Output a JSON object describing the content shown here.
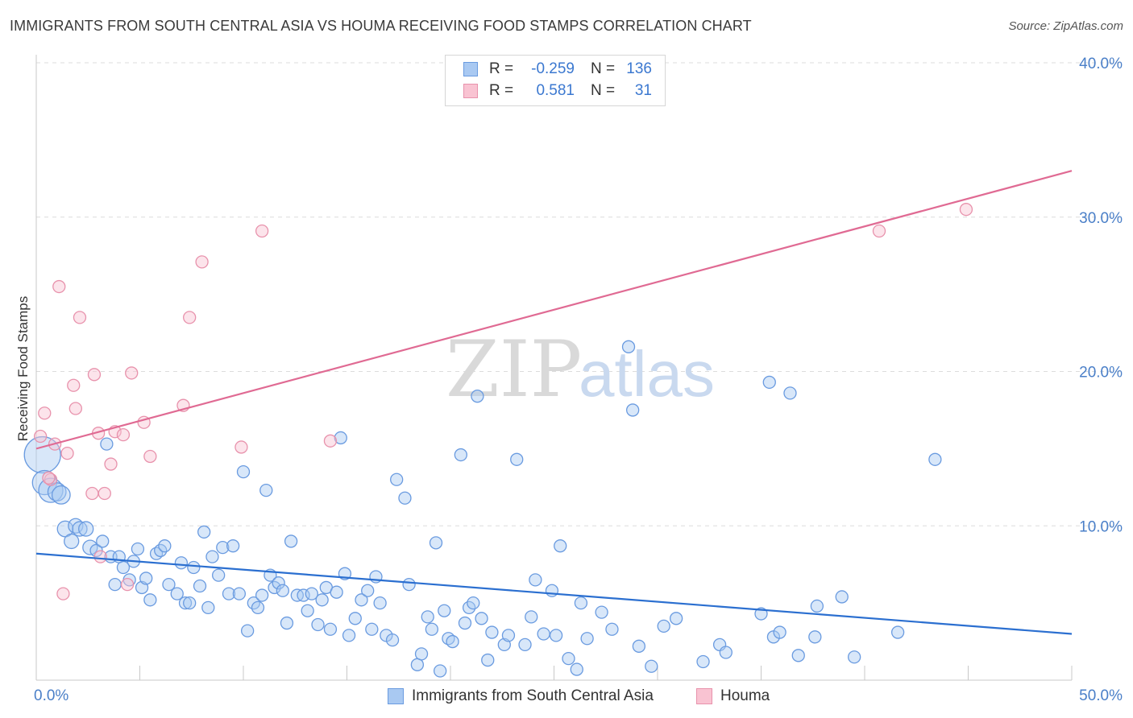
{
  "title": "IMMIGRANTS FROM SOUTH CENTRAL ASIA VS HOUMA RECEIVING FOOD STAMPS CORRELATION CHART",
  "source": "Source: ZipAtlas.com",
  "watermark": {
    "zip": "ZIP",
    "atlas": "atlas"
  },
  "legend": {
    "rows": [
      {
        "r_label": "R =",
        "r_value": "-0.259",
        "n_label": "N =",
        "n_value": "136",
        "color": "#a9c9f2",
        "border": "#6a9be0"
      },
      {
        "r_label": "R =",
        "r_value": "0.581",
        "n_label": "N =",
        "n_value": "31",
        "color": "#f9c3d2",
        "border": "#e892ac"
      }
    ]
  },
  "bottom_legend": [
    {
      "label": "Immigrants from South Central Asia",
      "color": "#a9c9f2",
      "border": "#6a9be0"
    },
    {
      "label": "Houma",
      "color": "#f9c3d2",
      "border": "#e892ac"
    }
  ],
  "chart_data": {
    "type": "scatter",
    "title": "IMMIGRANTS FROM SOUTH CENTRAL ASIA VS HOUMA RECEIVING FOOD STAMPS CORRELATION CHART",
    "xlabel": "",
    "ylabel": "Receiving Food Stamps",
    "xlim": [
      0,
      50
    ],
    "ylim": [
      0,
      40
    ],
    "x_tick_labels": [
      {
        "value": 0,
        "label": "0.0%"
      },
      {
        "value": 50,
        "label": "50.0%"
      }
    ],
    "y_tick_labels": [
      {
        "value": 10,
        "label": "10.0%"
      },
      {
        "value": 20,
        "label": "20.0%"
      },
      {
        "value": 30,
        "label": "30.0%"
      },
      {
        "value": 40,
        "label": "40.0%"
      }
    ],
    "grid": "horizontal dashed",
    "series": [
      {
        "name": "Immigrants from South Central Asia",
        "color": "#6a9be0",
        "fill": "#a9c9f2",
        "trend": {
          "x": [
            0,
            50
          ],
          "y": [
            8.2,
            3.0
          ],
          "color": "#2b6fd0"
        },
        "points": [
          {
            "x": 0.3,
            "y": 14.6,
            "s": 3
          },
          {
            "x": 0.4,
            "y": 12.8,
            "s": 2
          },
          {
            "x": 0.7,
            "y": 12.3,
            "s": 2
          },
          {
            "x": 1.0,
            "y": 12.2,
            "s": 1.5
          },
          {
            "x": 1.2,
            "y": 12.0,
            "s": 1.5
          },
          {
            "x": 1.4,
            "y": 9.8,
            "s": 1.3
          },
          {
            "x": 1.7,
            "y": 9.0,
            "s": 1.2
          },
          {
            "x": 1.9,
            "y": 10.0,
            "s": 1.2
          },
          {
            "x": 2.1,
            "y": 9.8,
            "s": 1.2
          },
          {
            "x": 2.4,
            "y": 9.8,
            "s": 1.2
          },
          {
            "x": 2.6,
            "y": 8.6,
            "s": 1.2
          },
          {
            "x": 2.9,
            "y": 8.4,
            "s": 1
          },
          {
            "x": 3.2,
            "y": 9.0,
            "s": 1
          },
          {
            "x": 3.4,
            "y": 15.3,
            "s": 1
          },
          {
            "x": 3.6,
            "y": 8.0,
            "s": 1
          },
          {
            "x": 3.8,
            "y": 6.2,
            "s": 1
          },
          {
            "x": 4.0,
            "y": 8.0,
            "s": 1
          },
          {
            "x": 4.2,
            "y": 7.3,
            "s": 1
          },
          {
            "x": 4.5,
            "y": 6.5,
            "s": 1
          },
          {
            "x": 4.7,
            "y": 7.7,
            "s": 1
          },
          {
            "x": 4.9,
            "y": 8.5,
            "s": 1
          },
          {
            "x": 5.1,
            "y": 6.0,
            "s": 1
          },
          {
            "x": 5.3,
            "y": 6.6,
            "s": 1
          },
          {
            "x": 5.5,
            "y": 5.2,
            "s": 1
          },
          {
            "x": 5.8,
            "y": 8.2,
            "s": 1
          },
          {
            "x": 6.0,
            "y": 8.4,
            "s": 1
          },
          {
            "x": 6.2,
            "y": 8.7,
            "s": 1
          },
          {
            "x": 6.4,
            "y": 6.2,
            "s": 1
          },
          {
            "x": 6.8,
            "y": 5.6,
            "s": 1
          },
          {
            "x": 7.0,
            "y": 7.6,
            "s": 1
          },
          {
            "x": 7.2,
            "y": 5.0,
            "s": 1
          },
          {
            "x": 7.4,
            "y": 5.0,
            "s": 1
          },
          {
            "x": 7.6,
            "y": 7.3,
            "s": 1
          },
          {
            "x": 7.9,
            "y": 6.1,
            "s": 1
          },
          {
            "x": 8.1,
            "y": 9.6,
            "s": 1
          },
          {
            "x": 8.3,
            "y": 4.7,
            "s": 1
          },
          {
            "x": 8.5,
            "y": 8.0,
            "s": 1
          },
          {
            "x": 8.8,
            "y": 6.8,
            "s": 1
          },
          {
            "x": 9.0,
            "y": 8.6,
            "s": 1
          },
          {
            "x": 9.3,
            "y": 5.6,
            "s": 1
          },
          {
            "x": 9.5,
            "y": 8.7,
            "s": 1
          },
          {
            "x": 9.8,
            "y": 5.6,
            "s": 1
          },
          {
            "x": 10.0,
            "y": 13.5,
            "s": 1
          },
          {
            "x": 10.2,
            "y": 3.2,
            "s": 1
          },
          {
            "x": 10.5,
            "y": 5.0,
            "s": 1
          },
          {
            "x": 10.7,
            "y": 4.7,
            "s": 1
          },
          {
            "x": 10.9,
            "y": 5.5,
            "s": 1
          },
          {
            "x": 11.1,
            "y": 12.3,
            "s": 1
          },
          {
            "x": 11.3,
            "y": 6.8,
            "s": 1
          },
          {
            "x": 11.5,
            "y": 6.0,
            "s": 1
          },
          {
            "x": 11.7,
            "y": 6.3,
            "s": 1
          },
          {
            "x": 11.9,
            "y": 5.8,
            "s": 1
          },
          {
            "x": 12.1,
            "y": 3.7,
            "s": 1
          },
          {
            "x": 12.3,
            "y": 9.0,
            "s": 1
          },
          {
            "x": 12.6,
            "y": 5.5,
            "s": 1
          },
          {
            "x": 12.9,
            "y": 5.5,
            "s": 1
          },
          {
            "x": 13.1,
            "y": 4.5,
            "s": 1
          },
          {
            "x": 13.3,
            "y": 5.6,
            "s": 1
          },
          {
            "x": 13.6,
            "y": 3.6,
            "s": 1
          },
          {
            "x": 13.8,
            "y": 5.2,
            "s": 1
          },
          {
            "x": 14.0,
            "y": 6.0,
            "s": 1
          },
          {
            "x": 14.2,
            "y": 3.3,
            "s": 1
          },
          {
            "x": 14.5,
            "y": 5.7,
            "s": 1
          },
          {
            "x": 14.7,
            "y": 15.7,
            "s": 1
          },
          {
            "x": 14.9,
            "y": 6.9,
            "s": 1
          },
          {
            "x": 15.1,
            "y": 2.9,
            "s": 1
          },
          {
            "x": 15.4,
            "y": 4.0,
            "s": 1
          },
          {
            "x": 15.7,
            "y": 5.2,
            "s": 1
          },
          {
            "x": 16.0,
            "y": 5.8,
            "s": 1
          },
          {
            "x": 16.2,
            "y": 3.3,
            "s": 1
          },
          {
            "x": 16.4,
            "y": 6.7,
            "s": 1
          },
          {
            "x": 16.6,
            "y": 5.0,
            "s": 1
          },
          {
            "x": 16.9,
            "y": 2.9,
            "s": 1
          },
          {
            "x": 17.2,
            "y": 2.6,
            "s": 1
          },
          {
            "x": 17.4,
            "y": 13.0,
            "s": 1
          },
          {
            "x": 17.8,
            "y": 11.8,
            "s": 1
          },
          {
            "x": 18.0,
            "y": 6.2,
            "s": 1
          },
          {
            "x": 18.4,
            "y": 1.0,
            "s": 1
          },
          {
            "x": 18.6,
            "y": 1.7,
            "s": 1
          },
          {
            "x": 18.9,
            "y": 4.1,
            "s": 1
          },
          {
            "x": 19.1,
            "y": 3.3,
            "s": 1
          },
          {
            "x": 19.3,
            "y": 8.9,
            "s": 1
          },
          {
            "x": 19.5,
            "y": 0.6,
            "s": 1
          },
          {
            "x": 19.7,
            "y": 4.5,
            "s": 1
          },
          {
            "x": 19.9,
            "y": 2.7,
            "s": 1
          },
          {
            "x": 20.1,
            "y": 2.5,
            "s": 1
          },
          {
            "x": 20.5,
            "y": 14.6,
            "s": 1
          },
          {
            "x": 20.7,
            "y": 3.7,
            "s": 1
          },
          {
            "x": 20.9,
            "y": 4.7,
            "s": 1
          },
          {
            "x": 21.1,
            "y": 5.0,
            "s": 1
          },
          {
            "x": 21.3,
            "y": 18.4,
            "s": 1
          },
          {
            "x": 21.5,
            "y": 4.0,
            "s": 1
          },
          {
            "x": 21.8,
            "y": 1.3,
            "s": 1
          },
          {
            "x": 22.0,
            "y": 3.1,
            "s": 1
          },
          {
            "x": 22.6,
            "y": 2.3,
            "s": 1
          },
          {
            "x": 22.8,
            "y": 2.9,
            "s": 1
          },
          {
            "x": 23.2,
            "y": 14.3,
            "s": 1
          },
          {
            "x": 23.6,
            "y": 2.3,
            "s": 1
          },
          {
            "x": 23.9,
            "y": 4.1,
            "s": 1
          },
          {
            "x": 24.1,
            "y": 6.5,
            "s": 1
          },
          {
            "x": 24.5,
            "y": 3.0,
            "s": 1
          },
          {
            "x": 24.9,
            "y": 5.8,
            "s": 1
          },
          {
            "x": 25.1,
            "y": 2.9,
            "s": 1
          },
          {
            "x": 25.3,
            "y": 8.7,
            "s": 1
          },
          {
            "x": 25.7,
            "y": 1.4,
            "s": 1
          },
          {
            "x": 26.1,
            "y": 0.7,
            "s": 1
          },
          {
            "x": 26.3,
            "y": 5.0,
            "s": 1
          },
          {
            "x": 26.6,
            "y": 2.7,
            "s": 1
          },
          {
            "x": 27.3,
            "y": 4.4,
            "s": 1
          },
          {
            "x": 27.8,
            "y": 3.3,
            "s": 1
          },
          {
            "x": 28.6,
            "y": 21.6,
            "s": 1
          },
          {
            "x": 28.8,
            "y": 17.5,
            "s": 1
          },
          {
            "x": 29.1,
            "y": 2.2,
            "s": 1
          },
          {
            "x": 29.7,
            "y": 0.9,
            "s": 1
          },
          {
            "x": 30.3,
            "y": 3.5,
            "s": 1
          },
          {
            "x": 30.9,
            "y": 4.0,
            "s": 1
          },
          {
            "x": 32.2,
            "y": 1.2,
            "s": 1
          },
          {
            "x": 33.0,
            "y": 2.3,
            "s": 1
          },
          {
            "x": 33.3,
            "y": 1.8,
            "s": 1
          },
          {
            "x": 35.0,
            "y": 4.3,
            "s": 1
          },
          {
            "x": 35.4,
            "y": 19.3,
            "s": 1
          },
          {
            "x": 35.6,
            "y": 2.8,
            "s": 1
          },
          {
            "x": 35.9,
            "y": 3.1,
            "s": 1
          },
          {
            "x": 36.4,
            "y": 18.6,
            "s": 1
          },
          {
            "x": 36.8,
            "y": 1.6,
            "s": 1
          },
          {
            "x": 37.6,
            "y": 2.8,
            "s": 1
          },
          {
            "x": 37.7,
            "y": 4.8,
            "s": 1
          },
          {
            "x": 38.9,
            "y": 5.4,
            "s": 1
          },
          {
            "x": 39.5,
            "y": 1.5,
            "s": 1
          },
          {
            "x": 41.6,
            "y": 3.1,
            "s": 1
          },
          {
            "x": 43.4,
            "y": 14.3,
            "s": 1
          }
        ]
      },
      {
        "name": "Houma",
        "color": "#e892ac",
        "fill": "#f9c3d2",
        "trend": {
          "x": [
            0,
            50
          ],
          "y": [
            15.0,
            33.0
          ],
          "color": "#e06a93"
        },
        "points": [
          {
            "x": 0.2,
            "y": 15.8,
            "s": 1
          },
          {
            "x": 0.4,
            "y": 17.3,
            "s": 1
          },
          {
            "x": 0.7,
            "y": 13.0,
            "s": 1
          },
          {
            "x": 0.9,
            "y": 15.3,
            "s": 1
          },
          {
            "x": 1.1,
            "y": 25.5,
            "s": 1
          },
          {
            "x": 1.3,
            "y": 5.6,
            "s": 1
          },
          {
            "x": 1.5,
            "y": 14.7,
            "s": 1
          },
          {
            "x": 1.8,
            "y": 19.1,
            "s": 1
          },
          {
            "x": 1.9,
            "y": 17.6,
            "s": 1
          },
          {
            "x": 2.1,
            "y": 23.5,
            "s": 1
          },
          {
            "x": 2.7,
            "y": 12.1,
            "s": 1
          },
          {
            "x": 2.8,
            "y": 19.8,
            "s": 1
          },
          {
            "x": 3.0,
            "y": 16.0,
            "s": 1
          },
          {
            "x": 3.1,
            "y": 8.0,
            "s": 1
          },
          {
            "x": 3.3,
            "y": 12.1,
            "s": 1
          },
          {
            "x": 3.6,
            "y": 14.0,
            "s": 1
          },
          {
            "x": 3.8,
            "y": 16.1,
            "s": 1
          },
          {
            "x": 4.2,
            "y": 15.9,
            "s": 1
          },
          {
            "x": 4.4,
            "y": 6.2,
            "s": 1
          },
          {
            "x": 4.6,
            "y": 19.9,
            "s": 1
          },
          {
            "x": 5.2,
            "y": 16.7,
            "s": 1
          },
          {
            "x": 5.5,
            "y": 14.5,
            "s": 1
          },
          {
            "x": 7.1,
            "y": 17.8,
            "s": 1
          },
          {
            "x": 7.4,
            "y": 23.5,
            "s": 1
          },
          {
            "x": 8.0,
            "y": 27.1,
            "s": 1
          },
          {
            "x": 9.9,
            "y": 15.1,
            "s": 1
          },
          {
            "x": 10.9,
            "y": 29.1,
            "s": 1
          },
          {
            "x": 14.2,
            "y": 15.5,
            "s": 1
          },
          {
            "x": 40.7,
            "y": 29.1,
            "s": 1
          },
          {
            "x": 44.9,
            "y": 30.5,
            "s": 1
          },
          {
            "x": 0.6,
            "y": 13.1,
            "s": 1
          }
        ]
      }
    ]
  }
}
